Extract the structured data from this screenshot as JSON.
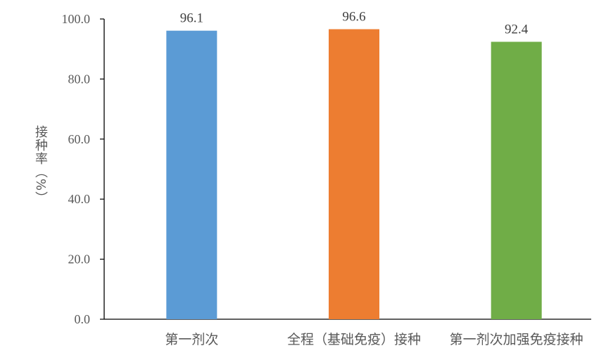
{
  "chart_data": {
    "type": "bar",
    "categories": [
      "第一剂次",
      "全程（基础免疫）接种",
      "第一剂次加强免疫接种"
    ],
    "values": [
      96.1,
      96.6,
      92.4
    ],
    "data_labels": [
      "96.1",
      "96.6",
      "92.4"
    ],
    "colors": [
      "#5B9BD5",
      "#ED7D31",
      "#70AD47"
    ],
    "ylabel": "接种率（%）",
    "xlabel": "",
    "ylim": [
      0,
      100
    ],
    "yticks": [
      "0.0",
      "20.0",
      "40.0",
      "60.0",
      "80.0",
      "100.0"
    ],
    "grid": false
  }
}
